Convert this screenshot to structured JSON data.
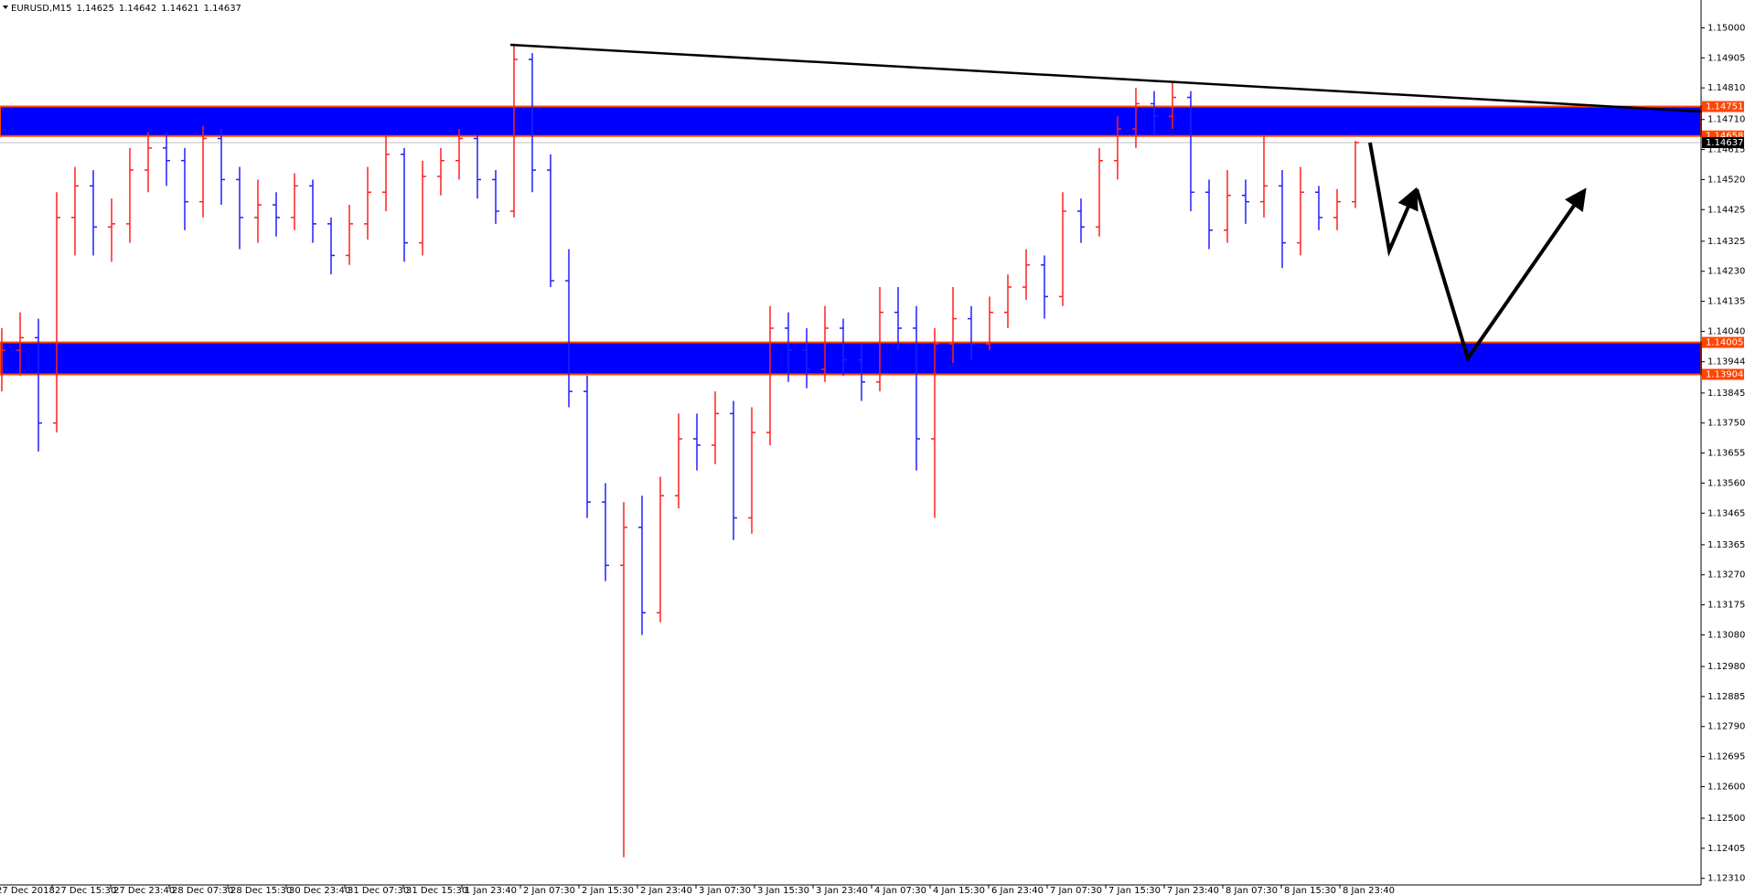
{
  "chart_data": {
    "type": "ohlc",
    "header": {
      "symbol": "EURUSD,M15",
      "quote": [
        1.14625,
        1.14642,
        1.14621,
        1.14637
      ]
    },
    "open": [
      1.1395,
      1.1398,
      1.1402,
      1.1375,
      1.144,
      1.145,
      1.1437,
      1.1438,
      1.1455,
      1.1462,
      1.1458,
      1.1445,
      1.1465,
      1.1452,
      1.144,
      1.1444,
      1.144,
      1.145,
      1.1438,
      1.1428,
      1.1438,
      1.1448,
      1.146,
      1.1432,
      1.1453,
      1.1458,
      1.1465,
      1.1452,
      1.1442,
      1.149,
      1.1455,
      1.142,
      1.1385,
      1.135,
      1.133,
      1.1342,
      1.1315,
      1.1352,
      1.137,
      1.1368,
      1.1378,
      1.1345,
      1.1372,
      1.1405,
      1.1398,
      1.1392,
      1.1405,
      1.1395,
      1.1388,
      1.141,
      1.1405,
      1.137,
      1.14,
      1.1408,
      1.14,
      1.141,
      1.1418,
      1.1425,
      1.1415,
      1.1442,
      1.1437,
      1.1458,
      1.1468,
      1.1476,
      1.1472,
      1.1478,
      1.1448,
      1.1436,
      1.1447,
      1.1445,
      1.145,
      1.1432,
      1.1448,
      1.144,
      1.1445
    ],
    "high": [
      1.1405,
      1.141,
      1.1408,
      1.1448,
      1.1456,
      1.1455,
      1.1446,
      1.1462,
      1.1467,
      1.1467,
      1.1462,
      1.1469,
      1.1468,
      1.1456,
      1.1452,
      1.1448,
      1.1454,
      1.1452,
      1.144,
      1.1444,
      1.1456,
      1.1466,
      1.1462,
      1.1458,
      1.1462,
      1.1468,
      1.1466,
      1.1455,
      1.1495,
      1.1492,
      1.146,
      1.143,
      1.139,
      1.1356,
      1.135,
      1.1352,
      1.1358,
      1.1378,
      1.1378,
      1.1385,
      1.1382,
      1.138,
      1.1412,
      1.141,
      1.1405,
      1.1412,
      1.1408,
      1.14,
      1.1418,
      1.1418,
      1.1412,
      1.1405,
      1.1418,
      1.1412,
      1.1415,
      1.1422,
      1.143,
      1.1428,
      1.1448,
      1.1446,
      1.1462,
      1.1472,
      1.1481,
      1.148,
      1.14831,
      1.148,
      1.1452,
      1.1455,
      1.1452,
      1.1466,
      1.1455,
      1.1456,
      1.145,
      1.1449,
      1.14642
    ],
    "low": [
      1.1385,
      1.139,
      1.1366,
      1.1372,
      1.1428,
      1.1428,
      1.1426,
      1.1432,
      1.1448,
      1.145,
      1.1436,
      1.144,
      1.1444,
      1.143,
      1.1432,
      1.1434,
      1.1436,
      1.1432,
      1.1422,
      1.1425,
      1.1433,
      1.1442,
      1.1426,
      1.1428,
      1.1447,
      1.1452,
      1.1446,
      1.1438,
      1.144,
      1.1448,
      1.1418,
      1.138,
      1.1345,
      1.1325,
      1.12377,
      1.1308,
      1.1312,
      1.1348,
      1.136,
      1.1362,
      1.1338,
      1.134,
      1.1368,
      1.1388,
      1.1386,
      1.1388,
      1.139,
      1.1382,
      1.1385,
      1.1398,
      1.136,
      1.1345,
      1.1394,
      1.1395,
      1.1398,
      1.1405,
      1.1414,
      1.1408,
      1.1412,
      1.1432,
      1.1434,
      1.1452,
      1.1462,
      1.1466,
      1.1468,
      1.1442,
      1.143,
      1.1432,
      1.1438,
      1.144,
      1.1424,
      1.1428,
      1.1436,
      1.1436,
      1.1443
    ],
    "close": [
      1.1398,
      1.1402,
      1.1375,
      1.144,
      1.145,
      1.1437,
      1.1438,
      1.1455,
      1.1462,
      1.1458,
      1.1445,
      1.1465,
      1.1452,
      1.144,
      1.1444,
      1.144,
      1.145,
      1.1438,
      1.1428,
      1.1438,
      1.1448,
      1.146,
      1.1432,
      1.1453,
      1.1458,
      1.1465,
      1.1452,
      1.1442,
      1.149,
      1.1455,
      1.142,
      1.1385,
      1.135,
      1.133,
      1.1342,
      1.1315,
      1.1352,
      1.137,
      1.1368,
      1.1378,
      1.1345,
      1.1372,
      1.1405,
      1.1398,
      1.1392,
      1.1405,
      1.1395,
      1.1388,
      1.141,
      1.1405,
      1.137,
      1.14,
      1.1408,
      1.14,
      1.141,
      1.1418,
      1.1425,
      1.1415,
      1.1442,
      1.1437,
      1.1458,
      1.1468,
      1.1476,
      1.1472,
      1.1478,
      1.1448,
      1.1436,
      1.1447,
      1.1445,
      1.145,
      1.1432,
      1.1448,
      1.144,
      1.1445,
      1.14637
    ],
    "up_color": "#ff2020",
    "down_color": "#2020ff",
    "ylim": [
      1.12289,
      1.15088
    ],
    "yticks": [
      {
        "value": 1.15,
        "label": "1.15000"
      },
      1.14905,
      {
        "value": 1.1481,
        "label": "1.14810"
      },
      {
        "value": 1.1471,
        "label": "1.14710"
      },
      1.14615,
      {
        "value": 1.1452,
        "label": "1.14520"
      },
      1.14425,
      1.14325,
      {
        "value": 1.1423,
        "label": "1.14230"
      },
      1.14135,
      {
        "value": 1.1404,
        "label": "1.14040"
      },
      1.13944,
      1.13845,
      {
        "value": 1.1375,
        "label": "1.13750"
      },
      1.13655,
      {
        "value": 1.1356,
        "label": "1.13560"
      },
      1.13465,
      1.13365,
      {
        "value": 1.1327,
        "label": "1.13270"
      },
      1.13175,
      {
        "value": 1.1308,
        "label": "1.13080"
      },
      {
        "value": 1.1298,
        "label": "1.12980"
      },
      1.12885,
      {
        "value": 1.1279,
        "label": "1.12790"
      },
      1.12695,
      {
        "value": 1.126,
        "label": "1.12600"
      },
      {
        "value": 1.125,
        "label": "1.12500"
      },
      1.12405,
      {
        "value": 1.1231,
        "label": "1.12310"
      }
    ],
    "time_labels": [
      "27 Dec 2018",
      "27 Dec 15:30",
      "27 Dec 23:40",
      "28 Dec 07:30",
      "28 Dec 15:30",
      "30 Dec 23:40",
      "31 Dec 07:30",
      "31 Dec 15:30",
      "1 Jan 23:40",
      "2 Jan 07:30",
      "2 Jan 15:30",
      "2 Jan 23:40",
      "3 Jan 07:30",
      "3 Jan 15:30",
      "3 Jan 23:40",
      "4 Jan 07:30",
      "4 Jan 15:30",
      "6 Jan 23:40",
      "7 Jan 07:30",
      "7 Jan 15:30",
      "7 Jan 23:40",
      "8 Jan 07:30",
      "8 Jan 15:30",
      "8 Jan 23:40"
    ],
    "zones": [
      {
        "top": 1.14751,
        "bottom": 1.14658,
        "fill": "#0000ff",
        "border": "#ff4500"
      },
      {
        "top": 1.14005,
        "bottom": 1.13904,
        "fill": "#0000ff",
        "border": "#ff4500"
      }
    ],
    "last_price": 1.14637
  }
}
